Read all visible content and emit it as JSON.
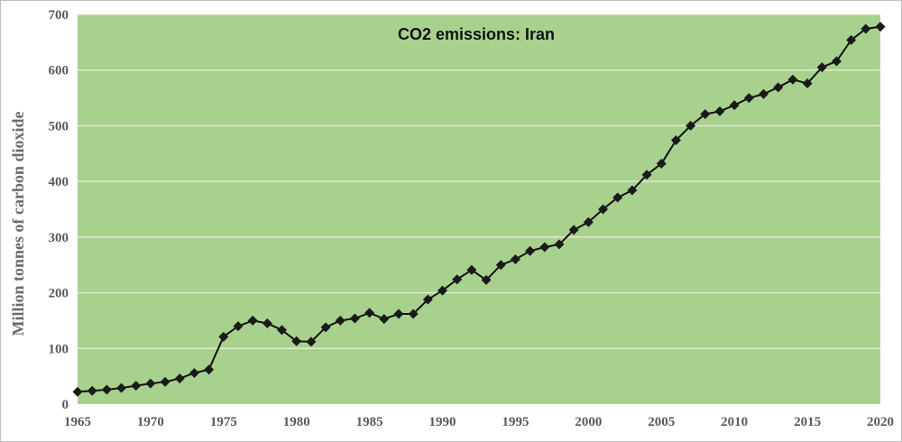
{
  "colors": {
    "plot_background": "#a9d18e",
    "grid": "#e8f0e0",
    "line": "#111111",
    "marker": "#1a1a1a",
    "frame": "#bfbfbf"
  },
  "chart_data": {
    "type": "line",
    "title": "CO2 emissions: Iran",
    "xlabel": "",
    "ylabel": "Million tonnes of carbon dioxide",
    "xlim": [
      1965,
      2020
    ],
    "ylim": [
      0,
      700
    ],
    "grid": true,
    "x_ticks": [
      "1965",
      "1970",
      "1975",
      "1980",
      "1985",
      "1990",
      "1995",
      "2000",
      "2005",
      "2010",
      "2015",
      "2020"
    ],
    "y_ticks": [
      "0",
      "100",
      "200",
      "300",
      "400",
      "500",
      "600",
      "700"
    ],
    "series": [
      {
        "name": "CO2 emissions: Iran",
        "x": [
          1965,
          1966,
          1967,
          1968,
          1969,
          1970,
          1971,
          1972,
          1973,
          1974,
          1975,
          1976,
          1977,
          1978,
          1979,
          1980,
          1981,
          1982,
          1983,
          1984,
          1985,
          1986,
          1987,
          1988,
          1989,
          1990,
          1991,
          1992,
          1993,
          1994,
          1995,
          1996,
          1997,
          1998,
          1999,
          2000,
          2001,
          2002,
          2003,
          2004,
          2005,
          2006,
          2007,
          2008,
          2009,
          2010,
          2011,
          2012,
          2013,
          2014,
          2015,
          2016,
          2017,
          2018,
          2019,
          2020
        ],
        "values": [
          22,
          24,
          26,
          29,
          33,
          37,
          40,
          46,
          56,
          62,
          121,
          140,
          150,
          145,
          133,
          113,
          112,
          138,
          150,
          154,
          164,
          153,
          162,
          162,
          188,
          204,
          224,
          241,
          223,
          250,
          260,
          275,
          282,
          287,
          313,
          327,
          350,
          371,
          384,
          412,
          432,
          474,
          500,
          521,
          526,
          537,
          550,
          557,
          569,
          583,
          576,
          605,
          616,
          654,
          674,
          678
        ]
      }
    ]
  }
}
